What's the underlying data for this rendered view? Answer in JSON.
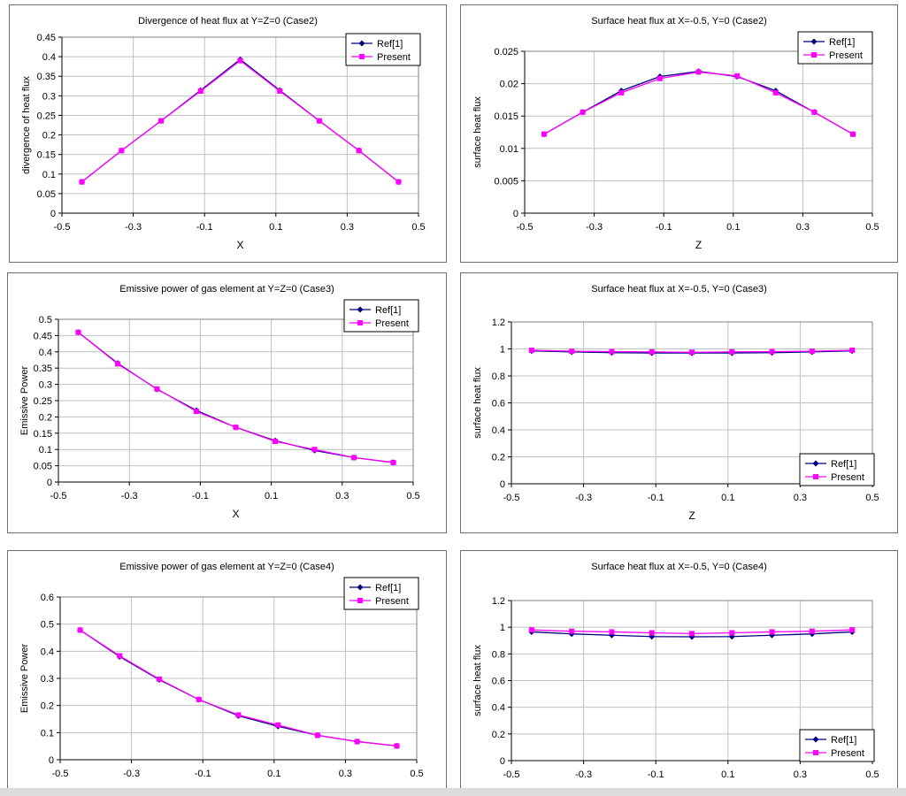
{
  "colors": {
    "ref": "#000080",
    "present": "#ff00ff",
    "grid": "#c0c0c0",
    "axis": "#000000"
  },
  "chart_data": [
    {
      "type": "line",
      "title": "Divergence of heat flux at Y=Z=0 (Case2)",
      "xlabel": "X",
      "ylabel": "divergence of heat flux",
      "xlim": [
        -0.5,
        0.5
      ],
      "ylim": [
        0,
        0.45
      ],
      "xticks": [
        "-0.5",
        "-0.3",
        "-0.1",
        "0.1",
        "0.3",
        "0.5"
      ],
      "yticks": [
        "0",
        "0.05",
        "0.1",
        "0.15",
        "0.2",
        "0.25",
        "0.3",
        "0.35",
        "0.4",
        "0.45"
      ],
      "legend": "top-right",
      "x": [
        -0.444,
        -0.333,
        -0.222,
        -0.111,
        0.0,
        0.111,
        0.222,
        0.333,
        0.444
      ],
      "series": [
        {
          "name": "Ref[1]",
          "values": [
            0.08,
            0.16,
            0.236,
            0.314,
            0.393,
            0.314,
            0.236,
            0.16,
            0.08
          ]
        },
        {
          "name": "Present",
          "values": [
            0.08,
            0.16,
            0.236,
            0.312,
            0.39,
            0.312,
            0.236,
            0.16,
            0.08
          ]
        }
      ]
    },
    {
      "type": "line",
      "title": "Surface heat flux at X=-0.5, Y=0 (Case2)",
      "xlabel": "Z",
      "ylabel": "surface heat flux",
      "xlim": [
        -0.5,
        0.5
      ],
      "ylim": [
        0,
        0.025
      ],
      "xticks": [
        "-0.5",
        "-0.3",
        "-0.1",
        "0.1",
        "0.3",
        "0.5"
      ],
      "yticks": [
        "0",
        "0.005",
        "0.01",
        "0.015",
        "0.02",
        "0.025"
      ],
      "legend": "top-right",
      "x": [
        -0.444,
        -0.333,
        -0.222,
        -0.111,
        0.0,
        0.111,
        0.222,
        0.333,
        0.444
      ],
      "series": [
        {
          "name": "Ref[1]",
          "values": [
            0.0122,
            0.0156,
            0.0189,
            0.0211,
            0.0219,
            0.0211,
            0.0189,
            0.0156,
            0.0122
          ]
        },
        {
          "name": "Present",
          "values": [
            0.0122,
            0.0156,
            0.0186,
            0.0208,
            0.0218,
            0.0212,
            0.0186,
            0.0156,
            0.0122
          ]
        }
      ]
    },
    {
      "type": "line",
      "title": "Emissive power of gas element at Y=Z=0 (Case3)",
      "xlabel": "X",
      "ylabel": "Emissive Power",
      "xlim": [
        -0.5,
        0.5
      ],
      "ylim": [
        0,
        0.5
      ],
      "xticks": [
        "-0.5",
        "-0.3",
        "-0.1",
        "0.1",
        "0.3",
        "0.5"
      ],
      "yticks": [
        "0",
        "0.05",
        "0.1",
        "0.15",
        "0.2",
        "0.25",
        "0.3",
        "0.35",
        "0.4",
        "0.45",
        "0.5"
      ],
      "legend": "top-right",
      "x": [
        -0.444,
        -0.333,
        -0.222,
        -0.111,
        0.0,
        0.111,
        0.222,
        0.333,
        0.444
      ],
      "series": [
        {
          "name": "Ref[1]",
          "values": [
            0.46,
            0.365,
            0.285,
            0.22,
            0.168,
            0.127,
            0.097,
            0.075,
            0.06
          ]
        },
        {
          "name": "Present",
          "values": [
            0.46,
            0.363,
            0.286,
            0.217,
            0.168,
            0.125,
            0.1,
            0.075,
            0.06
          ]
        }
      ]
    },
    {
      "type": "line",
      "title": "Surface heat flux at X=-0.5, Y=0 (Case3)",
      "xlabel": "Z",
      "ylabel": "surface heat flux",
      "xlim": [
        -0.5,
        0.5
      ],
      "ylim": [
        0,
        1.2
      ],
      "xticks": [
        "-0.5",
        "-0.3",
        "-0.1",
        "0.1",
        "0.3",
        "0.5"
      ],
      "yticks": [
        "0",
        "0.2",
        "0.4",
        "0.6",
        "0.8",
        "1",
        "1.2"
      ],
      "legend": "bottom-right",
      "x": [
        -0.444,
        -0.333,
        -0.222,
        -0.111,
        0.0,
        0.111,
        0.222,
        0.333,
        0.444
      ],
      "series": [
        {
          "name": "Ref[1]",
          "values": [
            0.985,
            0.978,
            0.972,
            0.97,
            0.97,
            0.97,
            0.972,
            0.978,
            0.985
          ]
        },
        {
          "name": "Present",
          "values": [
            0.99,
            0.983,
            0.98,
            0.978,
            0.975,
            0.978,
            0.98,
            0.983,
            0.99
          ]
        }
      ]
    },
    {
      "type": "line",
      "title": "Emissive power of gas element at Y=Z=0 (Case4)",
      "xlabel": "",
      "ylabel": "Emissive Power",
      "xlim": [
        -0.5,
        0.5
      ],
      "ylim": [
        0,
        0.6
      ],
      "xticks": [
        "-0.5",
        "-0.3",
        "-0.1",
        "0.1",
        "0.3",
        "0.5"
      ],
      "yticks": [
        "0",
        "0.1",
        "0.2",
        "0.3",
        "0.4",
        "0.5",
        "0.6"
      ],
      "legend": "top-right",
      "x": [
        -0.444,
        -0.333,
        -0.222,
        -0.111,
        0.0,
        0.111,
        0.222,
        0.333,
        0.444
      ],
      "series": [
        {
          "name": "Ref[1]",
          "values": [
            0.478,
            0.38,
            0.295,
            0.222,
            0.162,
            0.123,
            0.09,
            0.067,
            0.051
          ]
        },
        {
          "name": "Present",
          "values": [
            0.478,
            0.383,
            0.297,
            0.222,
            0.165,
            0.128,
            0.09,
            0.067,
            0.051
          ]
        }
      ]
    },
    {
      "type": "line",
      "title": "Surface heat flux at X=-0.5, Y=0 (Case4)",
      "xlabel": "",
      "ylabel": "surface heat flux",
      "xlim": [
        -0.5,
        0.5
      ],
      "ylim": [
        0,
        1.2
      ],
      "xticks": [
        "-0.5",
        "-0.3",
        "-0.1",
        "0.1",
        "0.3",
        "0.5"
      ],
      "yticks": [
        "0",
        "0.2",
        "0.4",
        "0.6",
        "0.8",
        "1",
        "1.2"
      ],
      "legend": "bottom-right",
      "x": [
        -0.444,
        -0.333,
        -0.222,
        -0.111,
        0.0,
        0.111,
        0.222,
        0.333,
        0.444
      ],
      "series": [
        {
          "name": "Ref[1]",
          "values": [
            0.965,
            0.95,
            0.94,
            0.93,
            0.928,
            0.93,
            0.94,
            0.95,
            0.965
          ]
        },
        {
          "name": "Present",
          "values": [
            0.98,
            0.97,
            0.965,
            0.958,
            0.952,
            0.958,
            0.965,
            0.97,
            0.98
          ]
        }
      ]
    }
  ]
}
